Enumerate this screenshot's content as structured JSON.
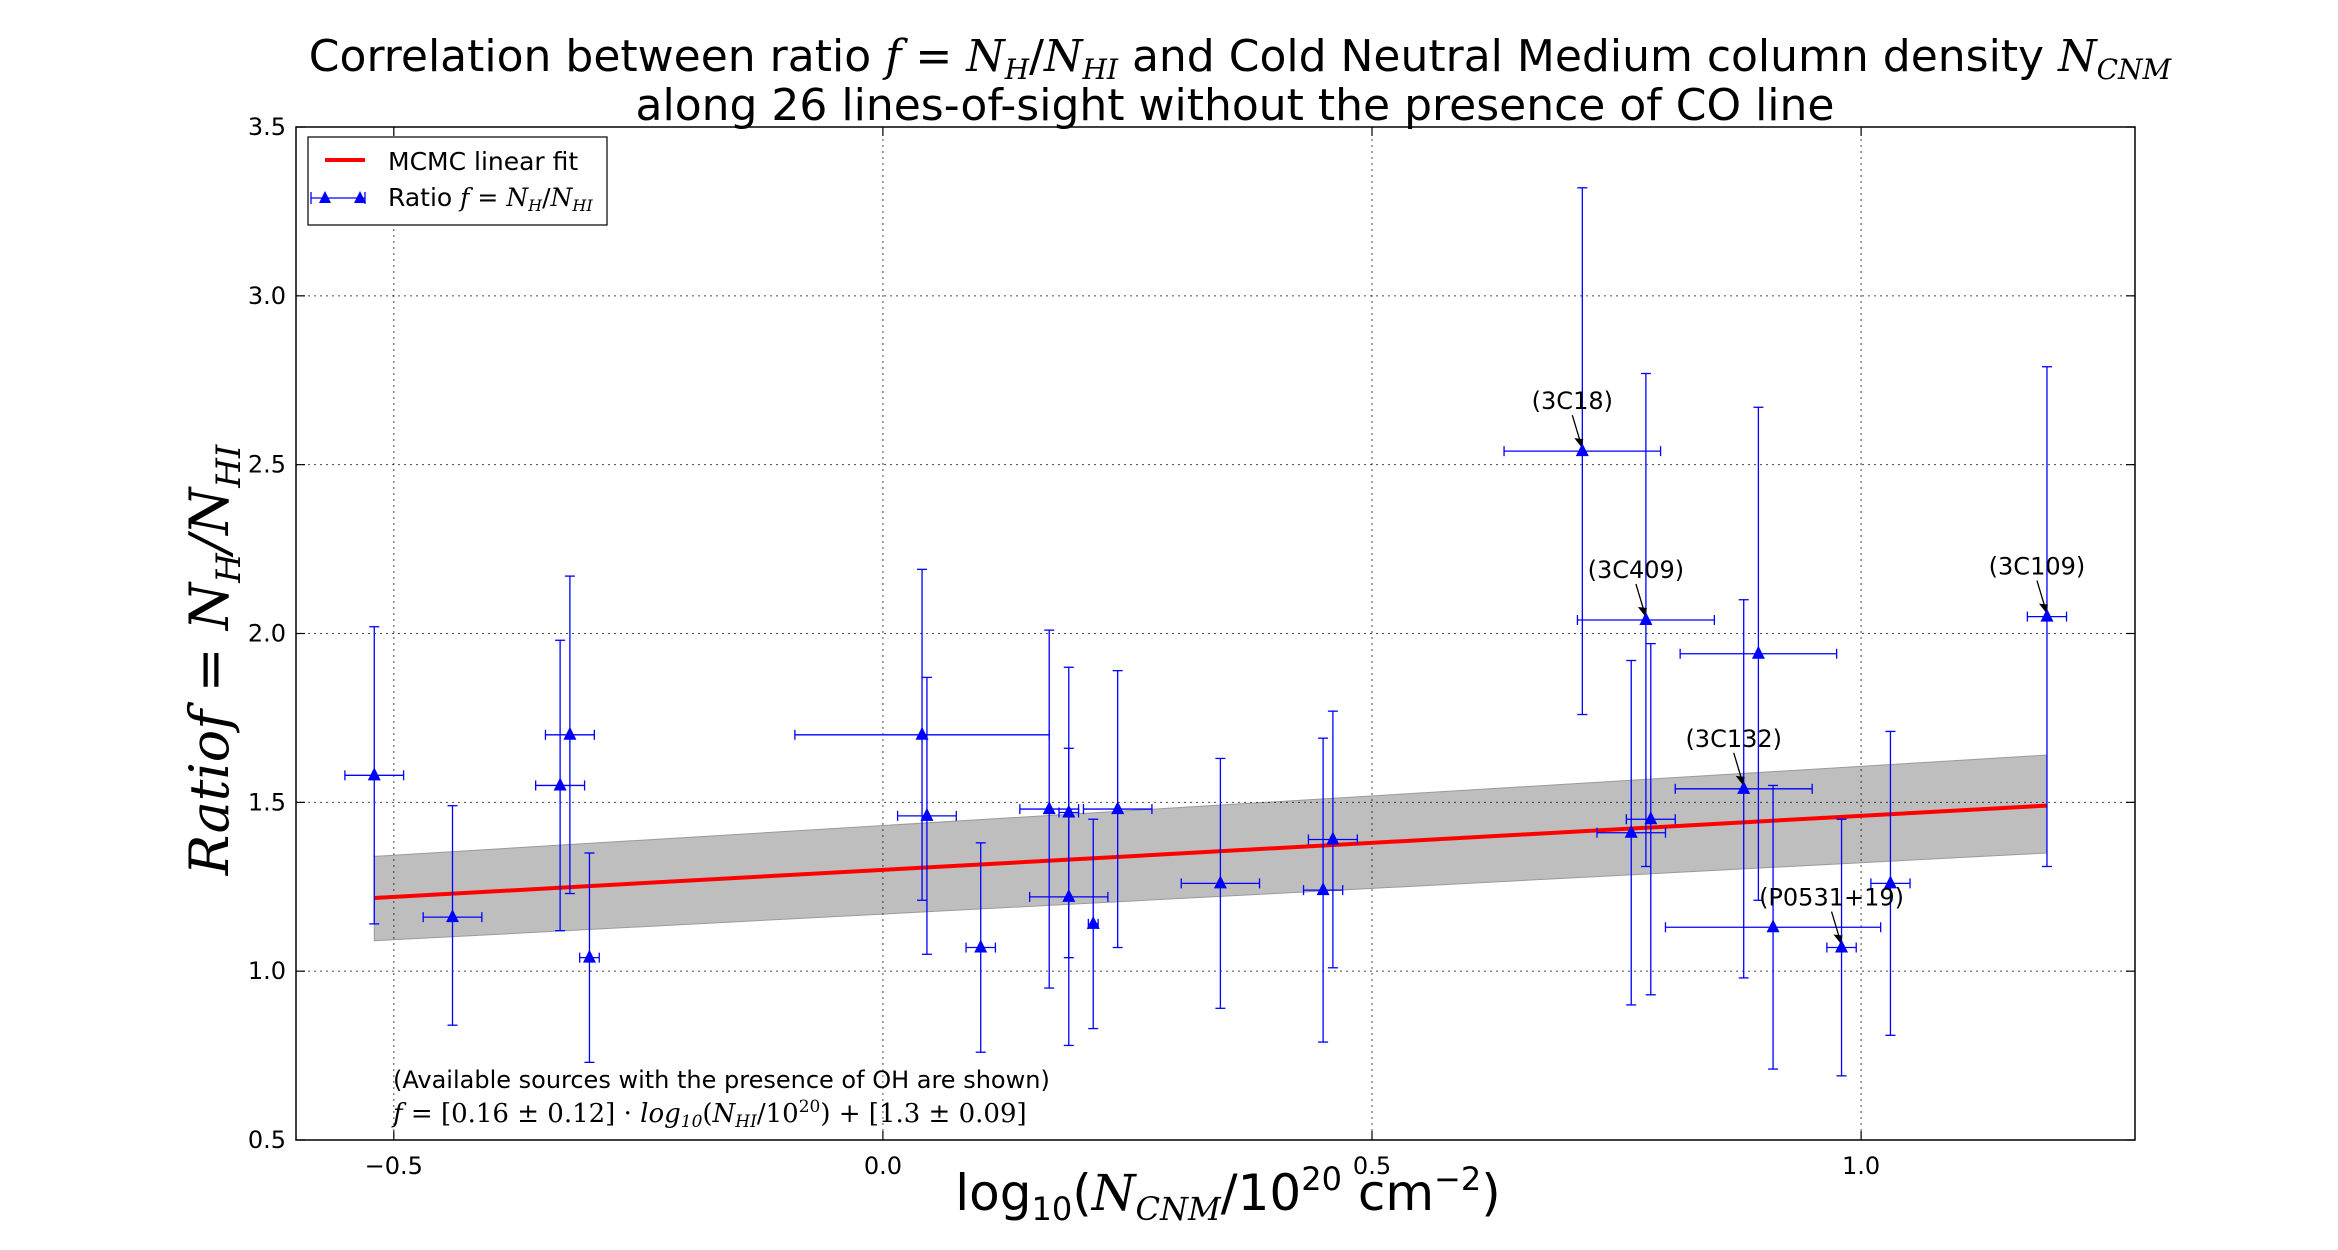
{
  "chart_data": {
    "type": "scatter",
    "title_line1": "Correlation between ratio f = N_H / N_HI and Cold Neutral Medium column density N_CNM",
    "title_line2": "along 26 lines-of-sight without the presence of CO line",
    "xlabel": "log10(N_CNM / 10^20 cm^-2)",
    "ylabel": "Ratio f = N_H / N_HI",
    "xlim": [
      -0.6,
      1.28
    ],
    "ylim": [
      0.5,
      3.5
    ],
    "x_ticks": [
      -0.5,
      0.0,
      0.5,
      1.0
    ],
    "x_tick_labels": [
      "−0.5",
      "0.0",
      "0.5",
      "1.0"
    ],
    "y_ticks": [
      0.5,
      1.0,
      1.5,
      2.0,
      2.5,
      3.0,
      3.5
    ],
    "y_tick_labels": [
      "0.5",
      "1.0",
      "1.5",
      "2.0",
      "2.5",
      "3.0",
      "3.5"
    ],
    "grid": true,
    "legend_position": "top-left",
    "legend": {
      "fit_label": "MCMC linear fit",
      "points_label": "Ratio f = N_H / N_HI"
    },
    "colors": {
      "fit": "#ff0000",
      "points": "#0000ff",
      "band": "#bebebe",
      "band_edge": "#9a9a9a"
    },
    "fit": {
      "slope": 0.16,
      "intercept": 1.3,
      "x_range": [
        -0.52,
        1.19
      ]
    },
    "fit_band": {
      "x": [
        -0.52,
        1.19
      ],
      "lower": [
        1.09,
        1.35
      ],
      "upper": [
        1.34,
        1.64
      ]
    },
    "annotations_text": [
      "(Available sources with the presence of OH are shown)",
      "f = [0.16 ± 0.12] · log10(N_HI / 10^20) + [1.3 ± 0.09]"
    ],
    "points": [
      {
        "x": -0.52,
        "y": 1.58,
        "xerr": 0.03,
        "yerr_low": 0.44,
        "yerr_high": 0.44
      },
      {
        "x": -0.44,
        "y": 1.16,
        "xerr": 0.03,
        "yerr_low": 0.32,
        "yerr_high": 0.33
      },
      {
        "x": -0.33,
        "y": 1.55,
        "xerr": 0.025,
        "yerr_low": 0.43,
        "yerr_high": 0.43
      },
      {
        "x": -0.32,
        "y": 1.7,
        "xerr": 0.025,
        "yerr_low": 0.47,
        "yerr_high": 0.47
      },
      {
        "x": -0.3,
        "y": 1.04,
        "xerr": 0.01,
        "yerr_low": 0.31,
        "yerr_high": 0.31
      },
      {
        "x": 0.04,
        "y": 1.7,
        "xerr": 0.13,
        "yerr_low": 0.49,
        "yerr_high": 0.49
      },
      {
        "x": 0.045,
        "y": 1.46,
        "xerr": 0.03,
        "yerr_low": 0.41,
        "yerr_high": 0.41
      },
      {
        "x": 0.1,
        "y": 1.07,
        "xerr": 0.015,
        "yerr_low": 0.31,
        "yerr_high": 0.31
      },
      {
        "x": 0.17,
        "y": 1.48,
        "xerr": 0.03,
        "yerr_low": 0.53,
        "yerr_high": 0.53
      },
      {
        "x": 0.19,
        "y": 1.47,
        "xerr": 0.01,
        "yerr_low": 0.43,
        "yerr_high": 0.43
      },
      {
        "x": 0.19,
        "y": 1.22,
        "xerr": 0.04,
        "yerr_low": 0.44,
        "yerr_high": 0.44
      },
      {
        "x": 0.215,
        "y": 1.14,
        "xerr": 0.005,
        "yerr_low": 0.31,
        "yerr_high": 0.31
      },
      {
        "x": 0.24,
        "y": 1.48,
        "xerr": 0.035,
        "yerr_low": 0.41,
        "yerr_high": 0.41
      },
      {
        "x": 0.345,
        "y": 1.26,
        "xerr": 0.04,
        "yerr_low": 0.37,
        "yerr_high": 0.37
      },
      {
        "x": 0.45,
        "y": 1.24,
        "xerr": 0.02,
        "yerr_low": 0.45,
        "yerr_high": 0.45
      },
      {
        "x": 0.46,
        "y": 1.39,
        "xerr": 0.025,
        "yerr_low": 0.38,
        "yerr_high": 0.38
      },
      {
        "x": 0.715,
        "y": 2.54,
        "xerr": 0.08,
        "yerr_low": 0.78,
        "yerr_high": 0.78,
        "label": "(3C18)"
      },
      {
        "x": 0.765,
        "y": 1.41,
        "xerr": 0.035,
        "yerr_low": 0.51,
        "yerr_high": 0.51
      },
      {
        "x": 0.78,
        "y": 2.04,
        "xerr": 0.07,
        "yerr_low": 0.73,
        "yerr_high": 0.73,
        "label": "(3C409)"
      },
      {
        "x": 0.785,
        "y": 1.45,
        "xerr": 0.025,
        "yerr_low": 0.52,
        "yerr_high": 0.52
      },
      {
        "x": 0.88,
        "y": 1.54,
        "xerr": 0.07,
        "yerr_low": 0.56,
        "yerr_high": 0.56,
        "label": "(3C132)"
      },
      {
        "x": 0.895,
        "y": 1.94,
        "xerr": 0.08,
        "yerr_low": 0.73,
        "yerr_high": 0.73
      },
      {
        "x": 0.91,
        "y": 1.13,
        "xerr": 0.11,
        "yerr_low": 0.42,
        "yerr_high": 0.42
      },
      {
        "x": 0.98,
        "y": 1.07,
        "xerr": 0.015,
        "yerr_low": 0.38,
        "yerr_high": 0.38,
        "label": "(P0531+19)"
      },
      {
        "x": 1.03,
        "y": 1.26,
        "xerr": 0.02,
        "yerr_low": 0.45,
        "yerr_high": 0.45
      },
      {
        "x": 1.19,
        "y": 2.05,
        "xerr": 0.02,
        "yerr_low": 0.74,
        "yerr_high": 0.74,
        "label": "(3C109)"
      }
    ]
  }
}
